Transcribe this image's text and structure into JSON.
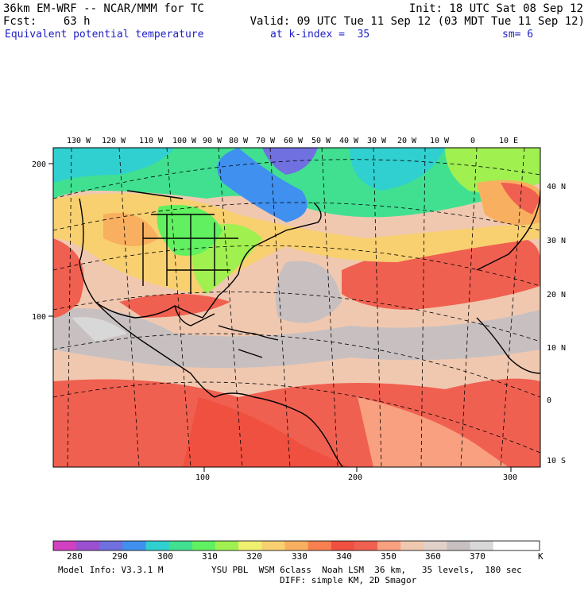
{
  "header": {
    "line1_left": "36km EM-WRF -- NCAR/MMM for TC",
    "line1_right": "Init: 18 UTC Sat 08 Sep 12",
    "line2_left": "Fcst:    63 h",
    "line2_right": "Valid: 09 UTC Tue 11 Sep 12 (03 MDT Tue 11 Sep 12)",
    "field_name": "Equivalent potential temperature",
    "kindex": "at k-index =  35",
    "smoothing": "sm= 6"
  },
  "map": {
    "lon_labels": [
      "130 W",
      "120 W",
      "110 W",
      "100 W",
      "90 W",
      "80 W",
      "70 W",
      "60 W",
      "50 W",
      "40 W",
      "30 W",
      "20 W",
      "10 W",
      "0",
      "10 E"
    ],
    "lat_labels": [
      "40 N",
      "30 N",
      "20 N",
      "10 N",
      "0",
      "10 S"
    ],
    "grid_y_labels": [
      "200",
      "100"
    ],
    "grid_x_labels": [
      "100",
      "200",
      "300"
    ],
    "colors": {
      "coast": "#000000",
      "grid": "#000000"
    }
  },
  "colorbar": {
    "levels": [
      "280",
      "290",
      "300",
      "310",
      "320",
      "330",
      "340",
      "350",
      "360",
      "370"
    ],
    "unit": "K",
    "colors": [
      "#d040c0",
      "#9a50d0",
      "#7070e0",
      "#4090f0",
      "#30d0d0",
      "#40e090",
      "#60f060",
      "#a0f050",
      "#f0f070",
      "#f8d070",
      "#f8b060",
      "#f88050",
      "#f05040",
      "#f06050",
      "#f8a080",
      "#f0c8b0",
      "#e0d0c8",
      "#c8c0c0",
      "#d8d8d8",
      "#ffffff",
      "#ffffff"
    ]
  },
  "footer": {
    "model_info": "Model Info: V3.3.1 M",
    "physics": "YSU PBL  WSM 6class  Noah LSM  36 km,   35 levels,  180 sec",
    "diffusion": "DIFF: simple KM, 2D Smagor"
  }
}
